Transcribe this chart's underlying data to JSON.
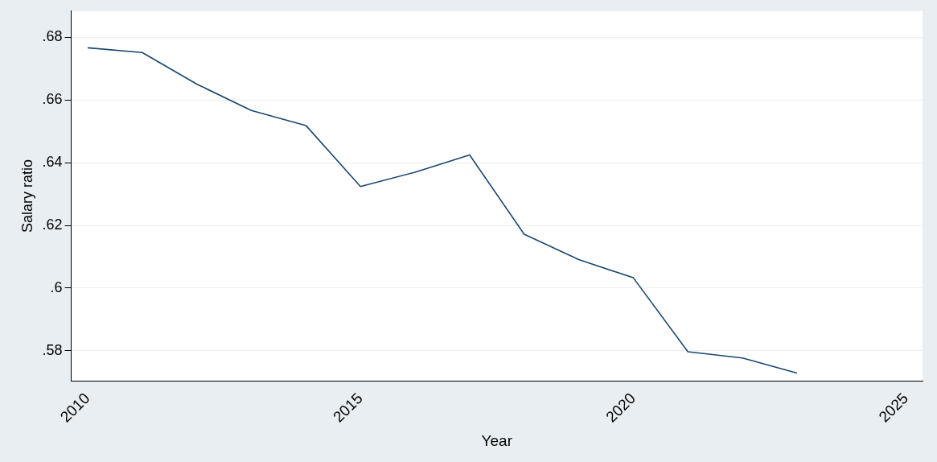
{
  "chart_data": {
    "type": "line",
    "xlabel": "Year",
    "ylabel": "Salary ratio",
    "x": [
      2010,
      2011,
      2012,
      2013,
      2014,
      2015,
      2016,
      2017,
      2018,
      2019,
      2020,
      2021,
      2022,
      2023
    ],
    "series": [
      {
        "color": "#1a476f",
        "values": [
          0.6767,
          0.6752,
          0.6651,
          0.6567,
          0.6519,
          0.6324,
          0.637,
          0.6425,
          0.6172,
          0.6091,
          0.6033,
          0.5797,
          0.5777,
          0.5729
        ]
      }
    ],
    "xlim": [
      2009.7,
      2025.3
    ],
    "xticks": [
      2010,
      2015,
      2020,
      2025
    ],
    "ylim": [
      0.5704,
      0.6884
    ],
    "yticks": [
      {
        "value": 0.58,
        "label": ".58"
      },
      {
        "value": 0.6,
        "label": ".6"
      },
      {
        "value": 0.62,
        "label": ".62"
      },
      {
        "value": 0.64,
        "label": ".64"
      },
      {
        "value": 0.66,
        "label": ".66"
      },
      {
        "value": 0.68,
        "label": ".68"
      }
    ],
    "grid": "y",
    "legend": false,
    "marker": "none",
    "line_style": "solid"
  }
}
